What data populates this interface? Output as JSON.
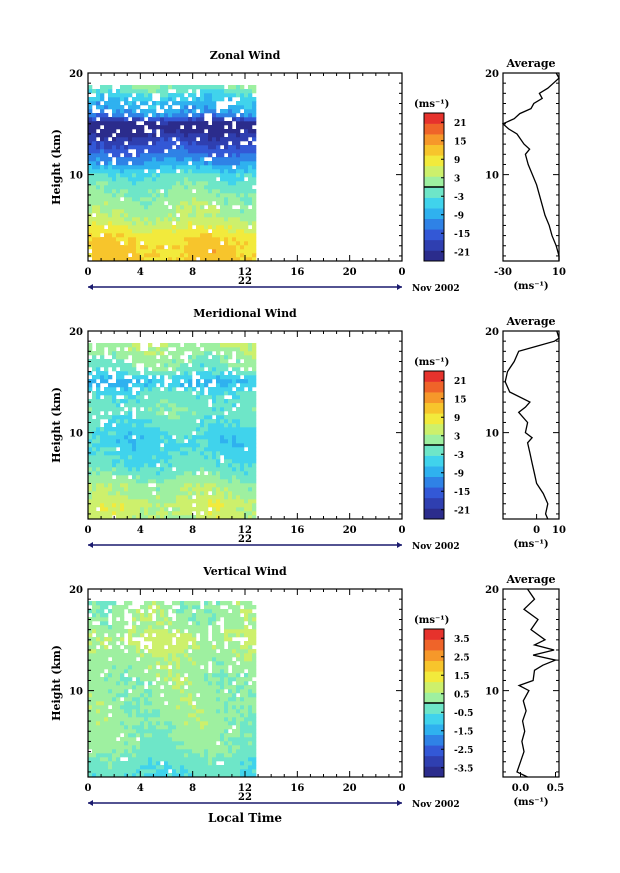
{
  "figure": {
    "xlabel": "Local Time",
    "date_label": "Nov 2002"
  },
  "chart_data": [
    {
      "type": "heatmap",
      "title": "Zonal Wind",
      "ylabel": "Height (km)",
      "xlim": [
        0,
        24
      ],
      "ylim": [
        1.5,
        20
      ],
      "xticks": [
        "0",
        "4",
        "8",
        "12",
        "16",
        "20",
        "0"
      ],
      "yticks": [
        "20",
        "10"
      ],
      "day_label": "22",
      "data_xmax": 12.6,
      "colorbar": {
        "unit": "(ms⁻¹)",
        "tick_labels": [
          "21",
          "15",
          "9",
          "3",
          "-3",
          "-9",
          "-15",
          "-21"
        ],
        "vmin": -24,
        "vmax": 24,
        "colors": [
          "#2b2c8c",
          "#2f3fb0",
          "#3358d6",
          "#2f82e6",
          "#2fb1ef",
          "#40d3ec",
          "#6ee6c8",
          "#9ef0a0",
          "#cdf06c",
          "#f2ea3c",
          "#f7c52c",
          "#f6982a",
          "#ef6429",
          "#e6322c"
        ]
      },
      "field_profile": [
        [
          1.5,
          11
        ],
        [
          3,
          11
        ],
        [
          4,
          9
        ],
        [
          6,
          3
        ],
        [
          8,
          1
        ],
        [
          9,
          -1
        ],
        [
          10,
          -3
        ],
        [
          11,
          -9
        ],
        [
          12,
          -13
        ],
        [
          13,
          -17
        ],
        [
          14,
          -21
        ],
        [
          15,
          -24
        ],
        [
          16,
          -10
        ],
        [
          17,
          -8
        ],
        [
          18,
          -4
        ],
        [
          19,
          2
        ]
      ],
      "average": {
        "title": "Average",
        "xlim": [
          -30,
          10
        ],
        "xticks": [
          "-30",
          "10"
        ],
        "xlabel": "(ms⁻¹)",
        "profile": [
          [
            1.5,
            11
          ],
          [
            2,
            10
          ],
          [
            3,
            8
          ],
          [
            4,
            5
          ],
          [
            5,
            3
          ],
          [
            6,
            0
          ],
          [
            7,
            -2
          ],
          [
            8,
            -4
          ],
          [
            9,
            -6
          ],
          [
            10,
            -9
          ],
          [
            11,
            -12
          ],
          [
            12,
            -14
          ],
          [
            12.5,
            -11
          ],
          [
            13,
            -15
          ],
          [
            14,
            -20
          ],
          [
            14.5,
            -26
          ],
          [
            15,
            -30
          ],
          [
            15.5,
            -22
          ],
          [
            16,
            -18
          ],
          [
            16.5,
            -10
          ],
          [
            17,
            -8
          ],
          [
            17.5,
            -2
          ],
          [
            18,
            -4
          ],
          [
            18.5,
            2
          ],
          [
            19,
            6
          ],
          [
            19.5,
            10
          ],
          [
            20,
            8
          ]
        ]
      }
    },
    {
      "type": "heatmap",
      "title": "Meridional Wind",
      "ylabel": "Height (km)",
      "xlim": [
        0,
        24
      ],
      "ylim": [
        1.5,
        20
      ],
      "xticks": [
        "0",
        "4",
        "8",
        "12",
        "16",
        "20",
        "0"
      ],
      "yticks": [
        "20",
        "10"
      ],
      "day_label": "22",
      "data_xmax": 12.6,
      "colorbar": {
        "unit": "(ms⁻¹)",
        "tick_labels": [
          "21",
          "15",
          "9",
          "3",
          "-3",
          "-9",
          "-15",
          "-21"
        ],
        "vmin": -24,
        "vmax": 24,
        "colors": [
          "#2b2c8c",
          "#2f3fb0",
          "#3358d6",
          "#2f82e6",
          "#2fb1ef",
          "#40d3ec",
          "#6ee6c8",
          "#9ef0a0",
          "#cdf06c",
          "#f2ea3c",
          "#f7c52c",
          "#f6982a",
          "#ef6429",
          "#e6322c"
        ]
      },
      "field_profile": [
        [
          1.5,
          4
        ],
        [
          3,
          5
        ],
        [
          4,
          3
        ],
        [
          5,
          2
        ],
        [
          6,
          -1
        ],
        [
          7,
          -3
        ],
        [
          8,
          -4
        ],
        [
          9,
          -5
        ],
        [
          10,
          -4
        ],
        [
          11,
          -3
        ],
        [
          12,
          -1
        ],
        [
          13,
          -2
        ],
        [
          14,
          -3
        ],
        [
          15,
          -8
        ],
        [
          16,
          -2
        ],
        [
          17,
          0
        ],
        [
          18,
          2
        ],
        [
          18.5,
          3
        ]
      ],
      "average": {
        "title": "Average",
        "xlim": [
          -15,
          10
        ],
        "xticks": [
          "0",
          "10"
        ],
        "xlabel": "(ms⁻¹)",
        "profile": [
          [
            1.5,
            5
          ],
          [
            2,
            4
          ],
          [
            3,
            5
          ],
          [
            4,
            3
          ],
          [
            5,
            0
          ],
          [
            6,
            -1
          ],
          [
            7,
            -2
          ],
          [
            8,
            -3
          ],
          [
            9,
            -4
          ],
          [
            9.5,
            -2
          ],
          [
            10,
            -5
          ],
          [
            11,
            -4
          ],
          [
            12,
            -8
          ],
          [
            12.5,
            -5
          ],
          [
            13,
            -3
          ],
          [
            14,
            -12
          ],
          [
            15,
            -14
          ],
          [
            16,
            -13
          ],
          [
            17,
            -10
          ],
          [
            18,
            -8
          ],
          [
            18.5,
            0
          ],
          [
            19,
            8
          ],
          [
            19.3,
            10
          ],
          [
            20,
            9
          ]
        ]
      }
    },
    {
      "type": "heatmap",
      "title": "Vertical Wind",
      "ylabel": "Height (km)",
      "xlim": [
        0,
        24
      ],
      "ylim": [
        1.5,
        20
      ],
      "xticks": [
        "0",
        "4",
        "8",
        "12",
        "16",
        "20",
        "0"
      ],
      "yticks": [
        "20",
        "10"
      ],
      "day_label": "22",
      "data_xmax": 12.6,
      "colorbar": {
        "unit": "(ms⁻¹)",
        "tick_labels": [
          "3.5",
          "2.5",
          "1.5",
          "0.5",
          "-0.5",
          "-1.5",
          "-2.5",
          "-3.5"
        ],
        "vmin": -4,
        "vmax": 4,
        "colors": [
          "#2b2c8c",
          "#2f3fb0",
          "#3358d6",
          "#2f82e6",
          "#2fb1ef",
          "#40d3ec",
          "#6ee6c8",
          "#9ef0a0",
          "#cdf06c",
          "#f2ea3c",
          "#f7c52c",
          "#f6982a",
          "#ef6429",
          "#e6322c"
        ]
      },
      "field_profile": [
        [
          1.5,
          -0.6
        ],
        [
          3,
          -0.3
        ],
        [
          5,
          0.1
        ],
        [
          7,
          0.2
        ],
        [
          9,
          0.3
        ],
        [
          11,
          0.2
        ],
        [
          13,
          0.4
        ],
        [
          15,
          0.7
        ],
        [
          17,
          0.3
        ],
        [
          19,
          0.2
        ]
      ],
      "average": {
        "title": "Average",
        "xlim": [
          -0.25,
          0.55
        ],
        "xticks": [
          "0.0",
          "0.5"
        ],
        "xlabel": "(ms⁻¹)",
        "profile": [
          [
            1.5,
            0.1
          ],
          [
            2,
            -0.05
          ],
          [
            3,
            0.0
          ],
          [
            4,
            0.05
          ],
          [
            5,
            0.02
          ],
          [
            6,
            0.06
          ],
          [
            7,
            0.03
          ],
          [
            8,
            0.08
          ],
          [
            9,
            0.04
          ],
          [
            10,
            0.12
          ],
          [
            10.5,
            -0.02
          ],
          [
            11,
            0.18
          ],
          [
            12,
            0.2
          ],
          [
            12.5,
            0.32
          ],
          [
            13,
            0.5
          ],
          [
            13.5,
            0.18
          ],
          [
            14,
            0.48
          ],
          [
            14.5,
            0.2
          ],
          [
            15,
            0.35
          ],
          [
            16,
            0.15
          ],
          [
            17,
            0.25
          ],
          [
            18,
            0.05
          ],
          [
            19,
            0.2
          ],
          [
            20,
            0.1
          ]
        ]
      }
    }
  ]
}
